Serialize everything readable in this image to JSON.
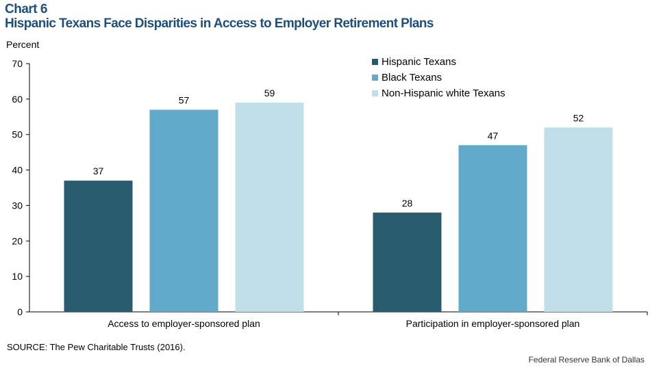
{
  "header": {
    "chart_number": "Chart 6",
    "title": "Hispanic Texans Face Disparities in Access to Employer Retirement Plans"
  },
  "chart_data": {
    "type": "bar",
    "title": "Hispanic Texans Face Disparities in Access to Employer Retirement Plans",
    "ylabel": "Percent",
    "xlabel": "",
    "ylim": [
      0,
      70
    ],
    "yticks": [
      0,
      10,
      20,
      30,
      40,
      50,
      60,
      70
    ],
    "categories": [
      "Access to employer-sponsored plan",
      "Participation in employer-sponsored plan"
    ],
    "series": [
      {
        "name": "Hispanic Texans",
        "values": [
          37,
          28
        ],
        "color": "#285b6e"
      },
      {
        "name": "Black Texans",
        "values": [
          57,
          47
        ],
        "color": "#62aac9"
      },
      {
        "name": "Non-Hispanic white Texans",
        "values": [
          59,
          52
        ],
        "color": "#c1dfe8"
      }
    ],
    "legend_position": "top-right",
    "grid": false
  },
  "footer": {
    "source": "SOURCE: The Pew Charitable Trusts (2016).",
    "credit": "Federal Reserve Bank of Dallas"
  }
}
